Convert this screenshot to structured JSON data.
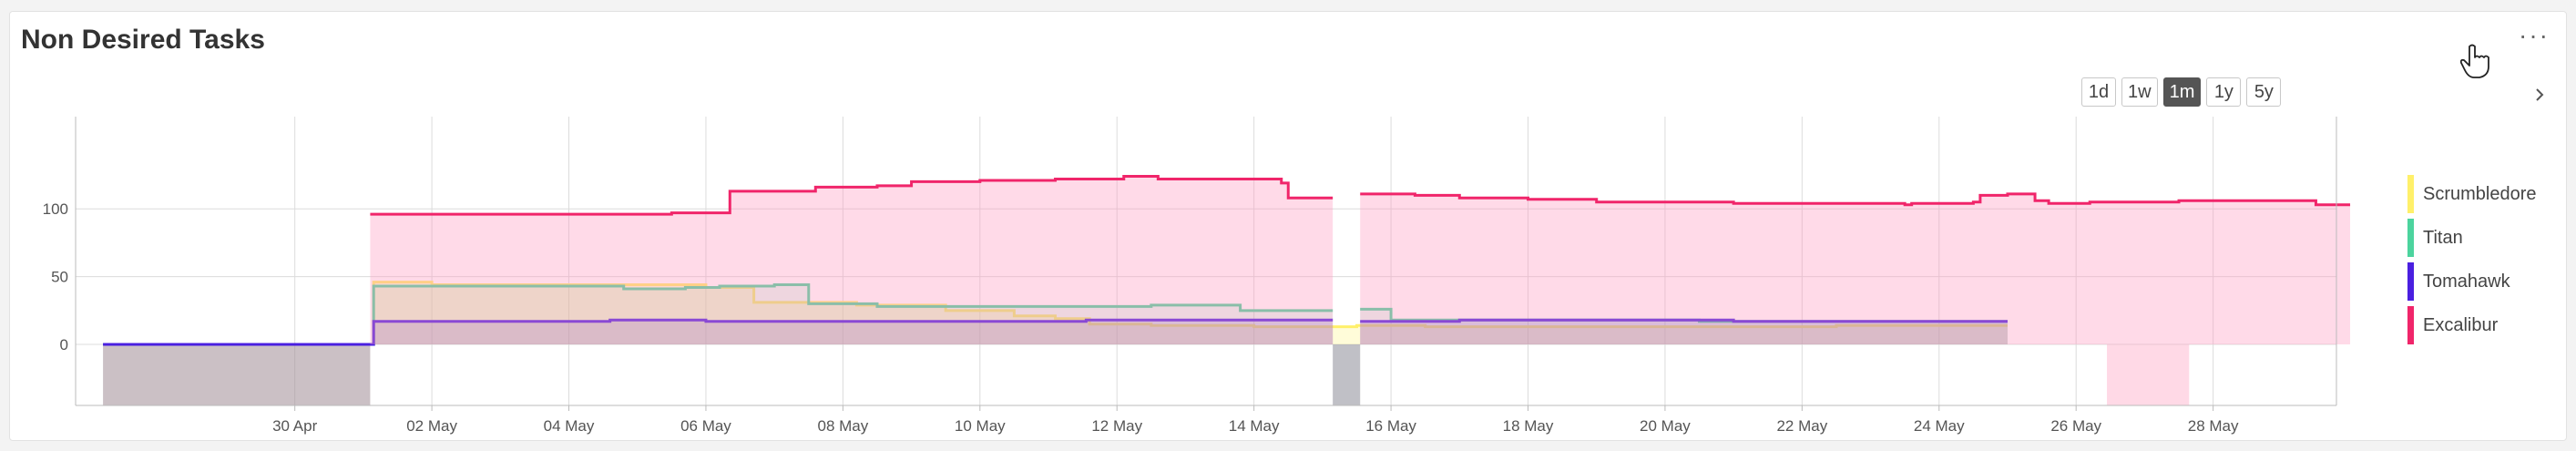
{
  "title": "Non Desired Tasks",
  "more_label": "···",
  "ranges": [
    "1d",
    "1w",
    "1m",
    "1y",
    "5y"
  ],
  "active_range": "1m",
  "chart_data": {
    "type": "area",
    "title": "Non Desired Tasks",
    "x_domain": [
      "2024-04-27",
      "2024-05-29"
    ],
    "x_ticks": [
      "30 Apr",
      "02 May",
      "04 May",
      "06 May",
      "08 May",
      "10 May",
      "12 May",
      "14 May",
      "16 May",
      "18 May",
      "20 May",
      "22 May",
      "24 May",
      "26 May",
      "28 May"
    ],
    "ylim": [
      -45,
      168
    ],
    "y_ticks": [
      0,
      50,
      100
    ],
    "grid": true,
    "legend_position": "right",
    "gaps": [
      [
        "2024-05-15.15",
        "2024-05-15.55"
      ],
      [
        "2024-05-26.45",
        "2024-05-27.65"
      ]
    ],
    "series": [
      {
        "name": "Scrumbledore",
        "color": "#fff06a",
        "fill": "rgba(255,245,120,0.28)",
        "points": [
          [
            1.2,
            0
          ],
          [
            5.1,
            0
          ],
          [
            5.15,
            46
          ],
          [
            6.0,
            44
          ],
          [
            10.0,
            42
          ],
          [
            10.7,
            31
          ],
          [
            12.2,
            29
          ],
          [
            13.5,
            25
          ],
          [
            14.5,
            21
          ],
          [
            15.1,
            19
          ],
          [
            15.6,
            15
          ],
          [
            16.5,
            14
          ],
          [
            18.0,
            13
          ],
          [
            19.5,
            14
          ],
          [
            20.5,
            13
          ],
          [
            23.0,
            13
          ],
          [
            26.5,
            14
          ],
          [
            29.0,
            14
          ]
        ]
      },
      {
        "name": "Titan",
        "color": "#4cd49e",
        "fill": "rgba(80,215,160,0.15)",
        "points": [
          [
            1.2,
            0
          ],
          [
            5.1,
            0
          ],
          [
            5.15,
            43
          ],
          [
            8.7,
            43
          ],
          [
            8.8,
            41
          ],
          [
            9.7,
            42
          ],
          [
            10.2,
            43
          ],
          [
            11.0,
            44
          ],
          [
            11.5,
            30
          ],
          [
            12.5,
            28
          ],
          [
            13.5,
            28
          ],
          [
            15.1,
            28
          ],
          [
            15.55,
            28
          ],
          [
            16.5,
            29
          ],
          [
            17.8,
            25
          ],
          [
            19.6,
            26
          ],
          [
            20.0,
            18
          ],
          [
            24.5,
            17
          ],
          [
            27.7,
            17
          ],
          [
            29.0,
            17
          ]
        ]
      },
      {
        "name": "Tomahawk",
        "color": "#4a1fe0",
        "fill": "rgba(60,40,200,0.18)",
        "points": [
          [
            1.2,
            0
          ],
          [
            5.1,
            0
          ],
          [
            5.15,
            17
          ],
          [
            8.5,
            17
          ],
          [
            8.6,
            18
          ],
          [
            10.0,
            17
          ],
          [
            15.1,
            17
          ],
          [
            15.55,
            18
          ],
          [
            19.6,
            17
          ],
          [
            20.0,
            17
          ],
          [
            21.0,
            18
          ],
          [
            24.0,
            18
          ],
          [
            25.0,
            17
          ],
          [
            29.0,
            17
          ]
        ]
      },
      {
        "name": "Excalibur",
        "color": "#f0256a",
        "fill": "rgba(255,150,190,0.35)",
        "points": [
          [
            5.1,
            96
          ],
          [
            8.5,
            96
          ],
          [
            9.5,
            97
          ],
          [
            10.3,
            97
          ],
          [
            10.35,
            113
          ],
          [
            11.0,
            113
          ],
          [
            11.6,
            116
          ],
          [
            12.5,
            117
          ],
          [
            13.0,
            120
          ],
          [
            14.0,
            121
          ],
          [
            15.1,
            122
          ],
          [
            16.1,
            124
          ],
          [
            16.6,
            122
          ],
          [
            18.4,
            119
          ],
          [
            18.5,
            108
          ],
          [
            19.1,
            108
          ],
          [
            19.6,
            111
          ],
          [
            20.0,
            111
          ],
          [
            20.35,
            110
          ],
          [
            21.0,
            108
          ],
          [
            22.0,
            107
          ],
          [
            23.0,
            105
          ],
          [
            25.0,
            104
          ],
          [
            26.0,
            104
          ],
          [
            26.3,
            104
          ],
          [
            27.5,
            103
          ],
          [
            27.6,
            104
          ],
          [
            28.5,
            105
          ],
          [
            28.6,
            110
          ],
          [
            29.0,
            111
          ],
          [
            29.4,
            106
          ],
          [
            29.6,
            104
          ],
          [
            30.2,
            105
          ],
          [
            31.5,
            106
          ],
          [
            33.5,
            103
          ],
          [
            34.0,
            103
          ]
        ]
      }
    ]
  }
}
